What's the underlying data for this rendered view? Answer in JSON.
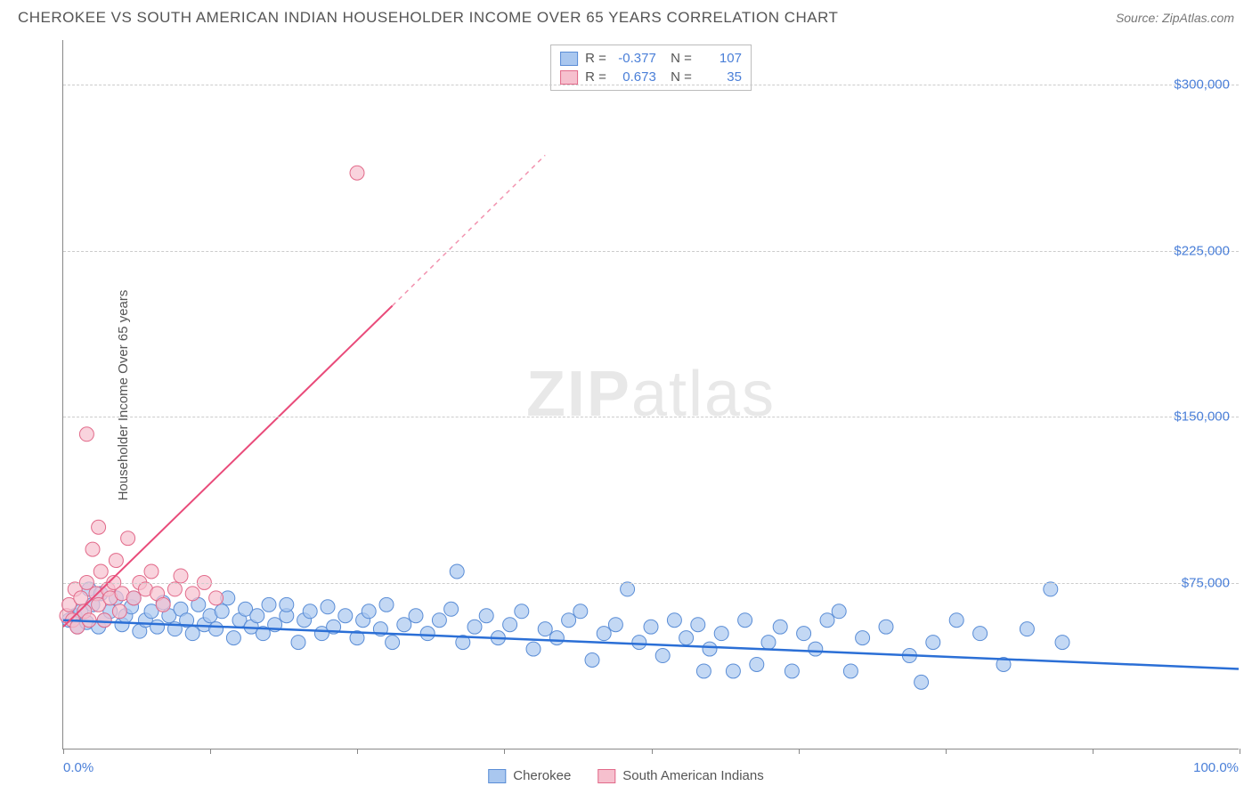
{
  "header": {
    "title": "CHEROKEE VS SOUTH AMERICAN INDIAN HOUSEHOLDER INCOME OVER 65 YEARS CORRELATION CHART",
    "source": "Source: ZipAtlas.com"
  },
  "chart": {
    "type": "scatter",
    "y_axis_label": "Householder Income Over 65 years",
    "x_axis": {
      "min_label": "0.0%",
      "max_label": "100.0%",
      "min": 0,
      "max": 100,
      "tick_positions": [
        0,
        12.5,
        25,
        37.5,
        50,
        62.5,
        75,
        87.5,
        100
      ]
    },
    "y_axis": {
      "min": 0,
      "max": 320000,
      "ticks": [
        {
          "value": 75000,
          "label": "$75,000"
        },
        {
          "value": 150000,
          "label": "$150,000"
        },
        {
          "value": 225000,
          "label": "$225,000"
        },
        {
          "value": 300000,
          "label": "$300,000"
        }
      ]
    },
    "grid_color": "#cccccc",
    "background_color": "#ffffff",
    "watermark": {
      "text_bold": "ZIP",
      "text_light": "atlas",
      "color": "#e8e8e8"
    },
    "series": [
      {
        "name": "Cherokee",
        "marker_fill": "#a9c7ef",
        "marker_stroke": "#5a8dd6",
        "marker_radius": 8,
        "trend_color": "#2b6fd6",
        "trend_width": 2.5,
        "trend_start": {
          "x": 0,
          "y": 58000
        },
        "trend_end": {
          "x": 100,
          "y": 36000
        },
        "trend_dashed_extension": null,
        "R": "-0.377",
        "N": "107",
        "points": [
          [
            0.5,
            58000
          ],
          [
            1,
            60000
          ],
          [
            1.2,
            55000
          ],
          [
            1.5,
            62000
          ],
          [
            2,
            57000
          ],
          [
            2.2,
            72000
          ],
          [
            2.5,
            65000
          ],
          [
            3,
            55000
          ],
          [
            3.2,
            70000
          ],
          [
            3.5,
            58000
          ],
          [
            4,
            62000
          ],
          [
            4.5,
            68000
          ],
          [
            5,
            56000
          ],
          [
            5.3,
            60000
          ],
          [
            5.8,
            64000
          ],
          [
            6,
            68000
          ],
          [
            6.5,
            53000
          ],
          [
            7,
            58000
          ],
          [
            7.5,
            62000
          ],
          [
            8,
            55000
          ],
          [
            8.5,
            66000
          ],
          [
            9,
            60000
          ],
          [
            9.5,
            54000
          ],
          [
            10,
            63000
          ],
          [
            10.5,
            58000
          ],
          [
            11,
            52000
          ],
          [
            11.5,
            65000
          ],
          [
            12,
            56000
          ],
          [
            12.5,
            60000
          ],
          [
            13,
            54000
          ],
          [
            13.5,
            62000
          ],
          [
            14,
            68000
          ],
          [
            14.5,
            50000
          ],
          [
            15,
            58000
          ],
          [
            15.5,
            63000
          ],
          [
            16,
            55000
          ],
          [
            16.5,
            60000
          ],
          [
            17,
            52000
          ],
          [
            17.5,
            65000
          ],
          [
            18,
            56000
          ],
          [
            19,
            60000
          ],
          [
            19,
            65000
          ],
          [
            20,
            48000
          ],
          [
            20.5,
            58000
          ],
          [
            21,
            62000
          ],
          [
            22,
            52000
          ],
          [
            22.5,
            64000
          ],
          [
            23,
            55000
          ],
          [
            24,
            60000
          ],
          [
            25,
            50000
          ],
          [
            25.5,
            58000
          ],
          [
            26,
            62000
          ],
          [
            27,
            54000
          ],
          [
            27.5,
            65000
          ],
          [
            28,
            48000
          ],
          [
            29,
            56000
          ],
          [
            30,
            60000
          ],
          [
            31,
            52000
          ],
          [
            32,
            58000
          ],
          [
            33,
            63000
          ],
          [
            33.5,
            80000
          ],
          [
            34,
            48000
          ],
          [
            35,
            55000
          ],
          [
            36,
            60000
          ],
          [
            37,
            50000
          ],
          [
            38,
            56000
          ],
          [
            39,
            62000
          ],
          [
            40,
            45000
          ],
          [
            41,
            54000
          ],
          [
            42,
            50000
          ],
          [
            43,
            58000
          ],
          [
            44,
            62000
          ],
          [
            45,
            40000
          ],
          [
            46,
            52000
          ],
          [
            47,
            56000
          ],
          [
            48,
            72000
          ],
          [
            49,
            48000
          ],
          [
            50,
            55000
          ],
          [
            51,
            42000
          ],
          [
            52,
            58000
          ],
          [
            53,
            50000
          ],
          [
            54,
            56000
          ],
          [
            54.5,
            35000
          ],
          [
            55,
            45000
          ],
          [
            56,
            52000
          ],
          [
            57,
            35000
          ],
          [
            58,
            58000
          ],
          [
            59,
            38000
          ],
          [
            60,
            48000
          ],
          [
            61,
            55000
          ],
          [
            62,
            35000
          ],
          [
            63,
            52000
          ],
          [
            64,
            45000
          ],
          [
            65,
            58000
          ],
          [
            66,
            62000
          ],
          [
            67,
            35000
          ],
          [
            68,
            50000
          ],
          [
            70,
            55000
          ],
          [
            72,
            42000
          ],
          [
            73,
            30000
          ],
          [
            74,
            48000
          ],
          [
            76,
            58000
          ],
          [
            78,
            52000
          ],
          [
            80,
            38000
          ],
          [
            82,
            54000
          ],
          [
            84,
            72000
          ],
          [
            85,
            48000
          ]
        ]
      },
      {
        "name": "South American Indians",
        "marker_fill": "#f6c0ce",
        "marker_stroke": "#e26a8a",
        "marker_radius": 8,
        "trend_color": "#e94b7a",
        "trend_width": 2,
        "trend_start": {
          "x": 0,
          "y": 55000
        },
        "trend_end": {
          "x": 28,
          "y": 200000
        },
        "trend_dashed_extension": {
          "x": 41,
          "y": 268000
        },
        "R": "0.673",
        "N": "35",
        "points": [
          [
            0.3,
            60000
          ],
          [
            0.5,
            65000
          ],
          [
            0.8,
            58000
          ],
          [
            1,
            72000
          ],
          [
            1.2,
            55000
          ],
          [
            1.5,
            68000
          ],
          [
            1.8,
            62000
          ],
          [
            2,
            75000
          ],
          [
            2.2,
            58000
          ],
          [
            2.5,
            90000
          ],
          [
            2.8,
            70000
          ],
          [
            3,
            65000
          ],
          [
            3.2,
            80000
          ],
          [
            3.5,
            58000
          ],
          [
            3.8,
            72000
          ],
          [
            4,
            68000
          ],
          [
            4.3,
            75000
          ],
          [
            4.5,
            85000
          ],
          [
            4.8,
            62000
          ],
          [
            5,
            70000
          ],
          [
            5.5,
            95000
          ],
          [
            6,
            68000
          ],
          [
            6.5,
            75000
          ],
          [
            7,
            72000
          ],
          [
            7.5,
            80000
          ],
          [
            8,
            70000
          ],
          [
            8.5,
            65000
          ],
          [
            9.5,
            72000
          ],
          [
            10,
            78000
          ],
          [
            11,
            70000
          ],
          [
            12,
            75000
          ],
          [
            13,
            68000
          ],
          [
            2,
            142000
          ],
          [
            3,
            100000
          ],
          [
            25,
            260000
          ]
        ]
      }
    ],
    "legend_top": {
      "columns": [
        "swatch",
        "R =",
        "value",
        "N =",
        "value"
      ]
    },
    "legend_bottom": [
      {
        "swatch_fill": "#a9c7ef",
        "swatch_stroke": "#5a8dd6",
        "label": "Cherokee"
      },
      {
        "swatch_fill": "#f6c0ce",
        "swatch_stroke": "#e26a8a",
        "label": "South American Indians"
      }
    ]
  }
}
